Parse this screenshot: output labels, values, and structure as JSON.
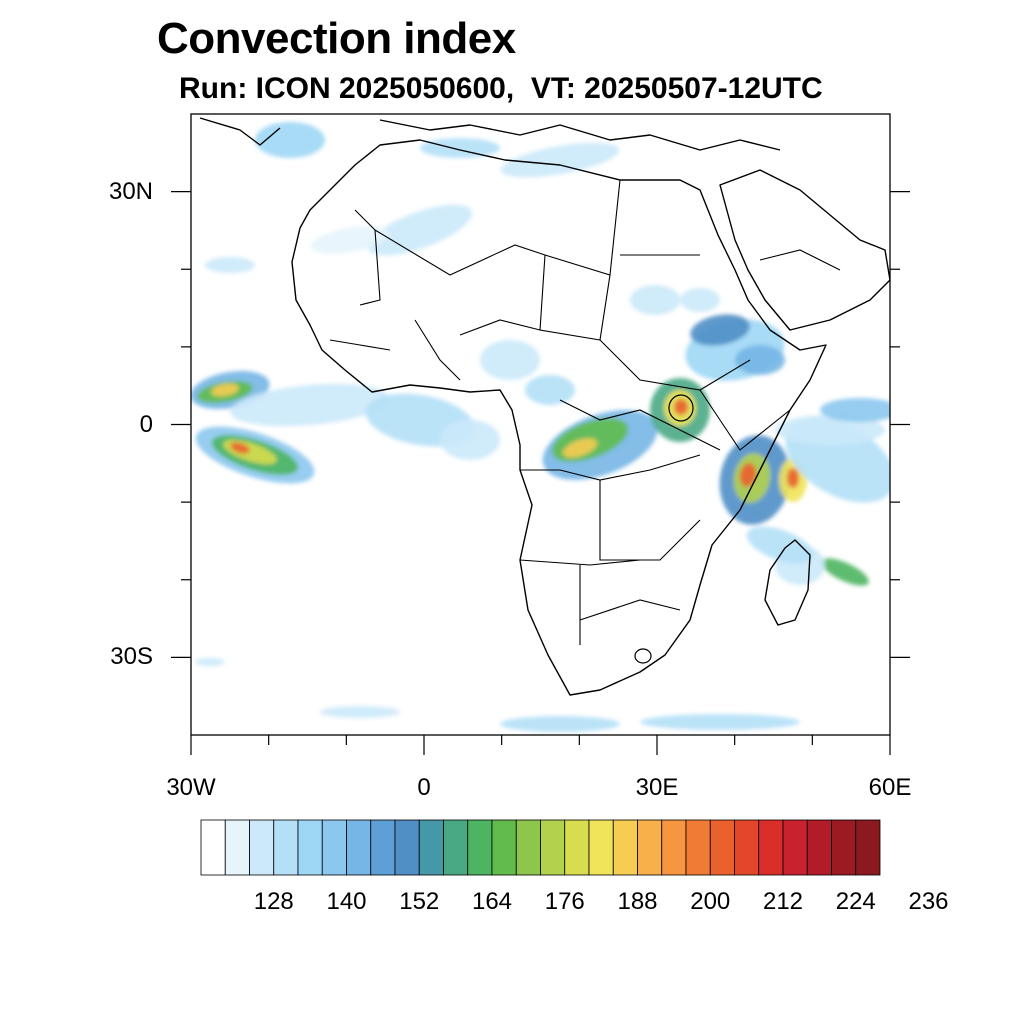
{
  "title": "Convection index",
  "subtitle": "Run: ICON 2025050600,  VT: 20250507-12UTC",
  "lat_labels": [
    {
      "text": "30N",
      "lat": 30
    },
    {
      "text": "0",
      "lat": 0
    },
    {
      "text": "30S",
      "lat": -30
    }
  ],
  "lon_labels": [
    {
      "text": "30W",
      "lon": -30
    },
    {
      "text": "0",
      "lon": 0
    },
    {
      "text": "30E",
      "lon": 30
    },
    {
      "text": "60E",
      "lon": 60
    }
  ],
  "map_extent": {
    "lon_min": -30,
    "lon_max": 60,
    "lat_min": -40,
    "lat_max": 40
  },
  "colorbar": {
    "labels": [
      "128",
      "140",
      "152",
      "164",
      "176",
      "188",
      "200",
      "212",
      "224",
      "236"
    ],
    "colors": [
      "#ffffff",
      "#e6f4fc",
      "#cbe9f9",
      "#b4e0f7",
      "#9dd7f5",
      "#8cc8ee",
      "#76b6e6",
      "#5f9fd7",
      "#4f8fc6",
      "#4598a8",
      "#4aa985",
      "#4db561",
      "#62bc4b",
      "#8dc54d",
      "#b2d14c",
      "#d7dd4e",
      "#f0e45a",
      "#f7cc52",
      "#f8b04a",
      "#f69640",
      "#f07b35",
      "#ea612d",
      "#e34629",
      "#da2e2b",
      "#c8222e",
      "#b21c28",
      "#9c1b22",
      "#8a1a1f"
    ]
  }
}
